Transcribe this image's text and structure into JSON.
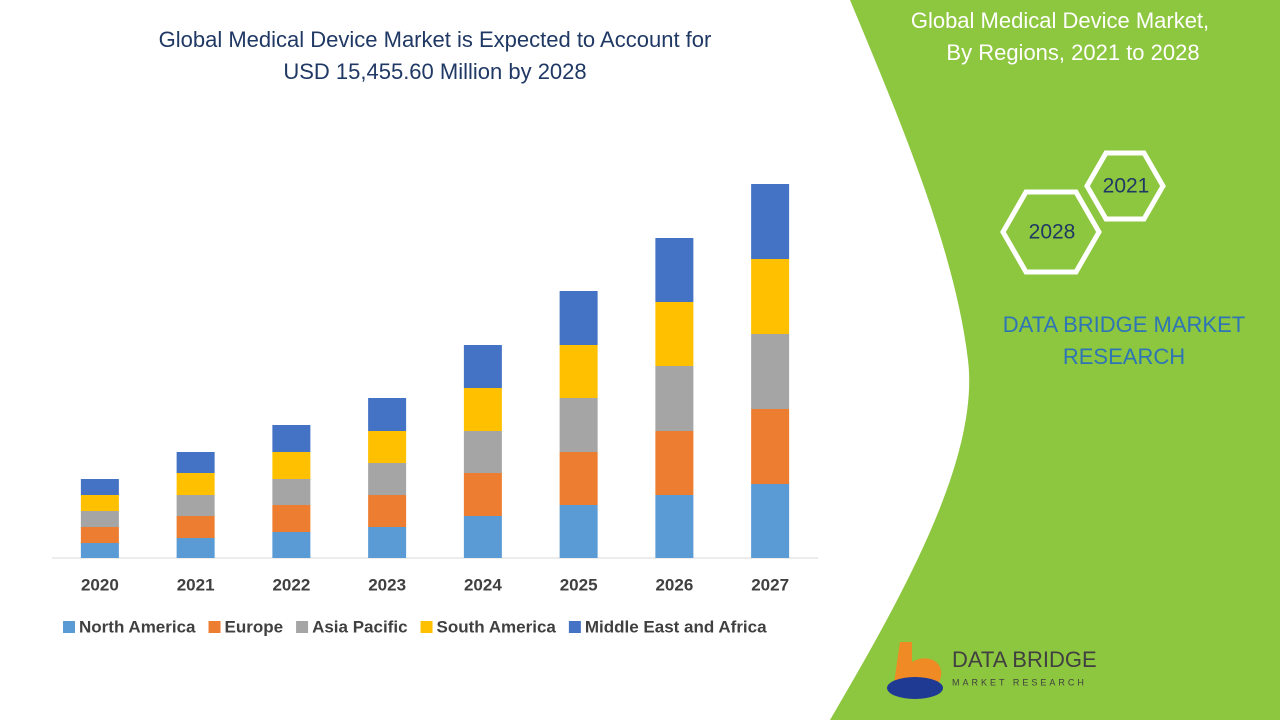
{
  "chart_data": {
    "type": "stacked-bar",
    "title": [
      "Global Medical Device Market is Expected to Account for",
      "USD  15,455.60 Million  by 2028"
    ],
    "categories": [
      "2020",
      "2021",
      "2022",
      "2023",
      "2024",
      "2025",
      "2026",
      "2027"
    ],
    "series": [
      {
        "name": "North America",
        "color": "#5b9bd5",
        "values": [
          15,
          20,
          26,
          31,
          42,
          53,
          63,
          74
        ]
      },
      {
        "name": "Europe",
        "color": "#ed7d31",
        "values": [
          16,
          22,
          27,
          32,
          43,
          53,
          64,
          75
        ]
      },
      {
        "name": "Asia Pacific",
        "color": "#a5a5a5",
        "values": [
          16,
          21,
          26,
          32,
          42,
          54,
          65,
          75
        ]
      },
      {
        "name": "South America",
        "color": "#ffc000",
        "values": [
          16,
          22,
          27,
          32,
          43,
          53,
          64,
          75
        ]
      },
      {
        "name": "Middle East and Africa",
        "color": "#4472c4",
        "values": [
          16,
          21,
          27,
          33,
          43,
          54,
          64,
          75
        ]
      }
    ],
    "ylim": [
      0,
      400
    ],
    "legend": "bottom"
  },
  "panel": {
    "title": [
      "Global Medical Device Market,",
      "By Regions, 2021 to 2028"
    ],
    "hex_labels": [
      "2021",
      "2028"
    ],
    "brand": [
      "DATA BRIDGE MARKET",
      "RESEARCH"
    ]
  },
  "logo": {
    "name": "DATA BRIDGE",
    "tagline": "MARKET RESEARCH"
  }
}
